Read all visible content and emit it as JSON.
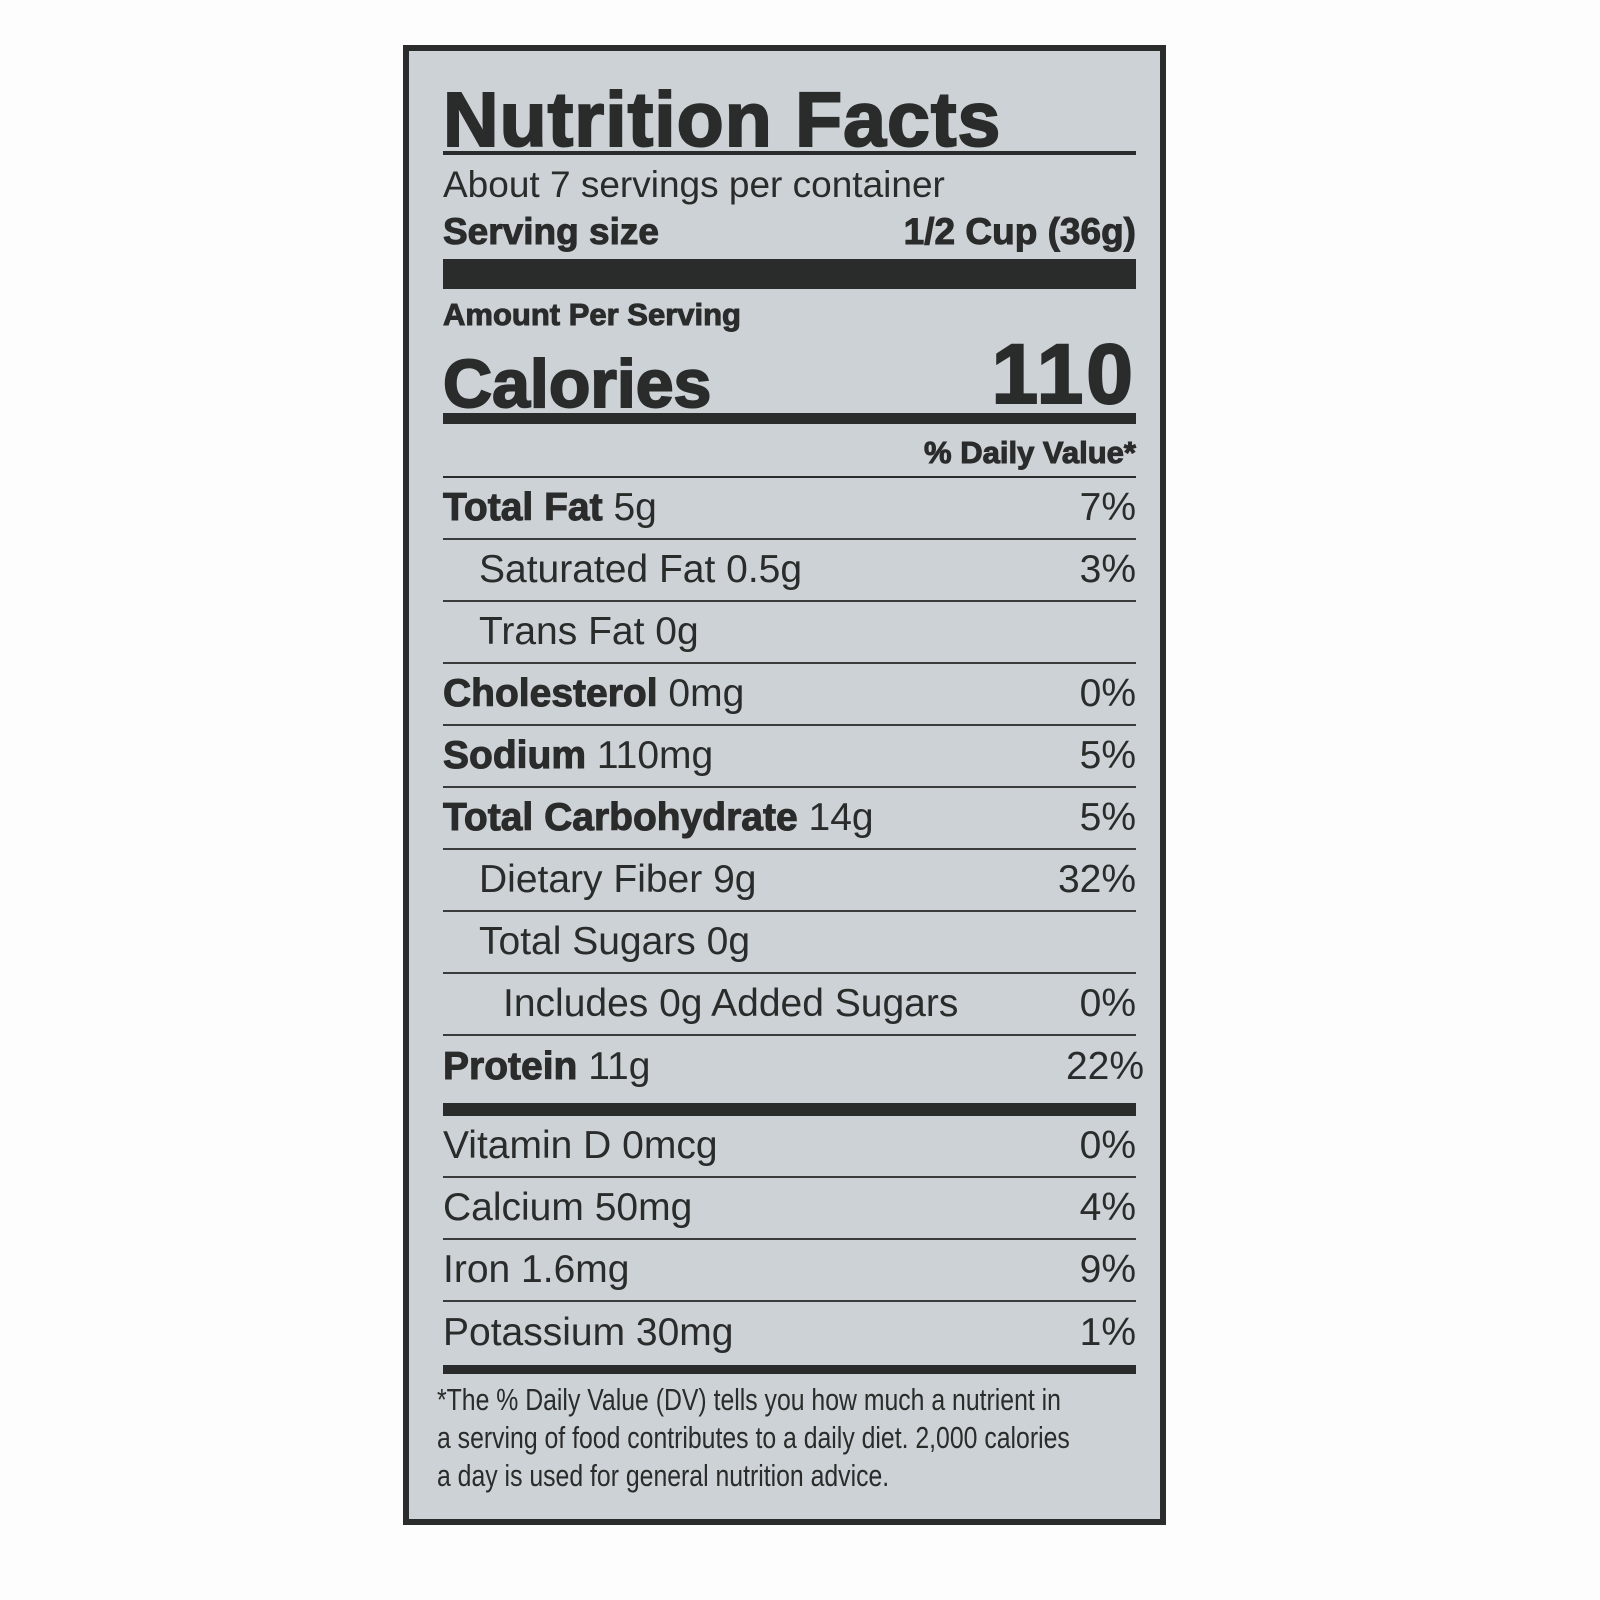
{
  "title": "Nutrition Facts",
  "servings_per_container": "About 7 servings per container",
  "serving_size_label": "Serving size",
  "serving_size_value": "1/2 Cup (36g)",
  "amount_per_serving": "Amount Per Serving",
  "calories_label": "Calories",
  "calories_value": "110",
  "daily_value_header": "% Daily Value*",
  "nutrients": [
    {
      "name": "Total Fat",
      "amount": "5g",
      "dv": "7%"
    },
    {
      "name": "Saturated Fat",
      "amount": "0.5g",
      "dv": "3%"
    },
    {
      "name": "Trans Fat",
      "amount": "0g",
      "dv": ""
    },
    {
      "name": "Cholesterol",
      "amount": "0mg",
      "dv": "0%"
    },
    {
      "name": "Sodium",
      "amount": "110mg",
      "dv": "5%"
    },
    {
      "name": "Total Carbohydrate",
      "amount": "14g",
      "dv": "5%"
    },
    {
      "name": "Dietary Fiber",
      "amount": "9g",
      "dv": "32%"
    },
    {
      "name": "Total Sugars",
      "amount": "0g",
      "dv": ""
    },
    {
      "name": "Includes 0g Added Sugars",
      "amount": "",
      "dv": "0%"
    },
    {
      "name": "Protein",
      "amount": "11g",
      "dv": "22%"
    }
  ],
  "vitamins": [
    {
      "text": "Vitamin D 0mcg",
      "dv": "0%"
    },
    {
      "text": "Calcium 50mg",
      "dv": "4%"
    },
    {
      "text": "Iron 1.6mg",
      "dv": "9%"
    },
    {
      "text": "Potassium 30mg",
      "dv": "1%"
    }
  ],
  "footnote": [
    "*The % Daily Value (DV) tells you how much a nutrient in",
    "a serving of food contributes to a daily diet. 2,000 calories",
    "a day is used for general nutrition advice."
  ]
}
